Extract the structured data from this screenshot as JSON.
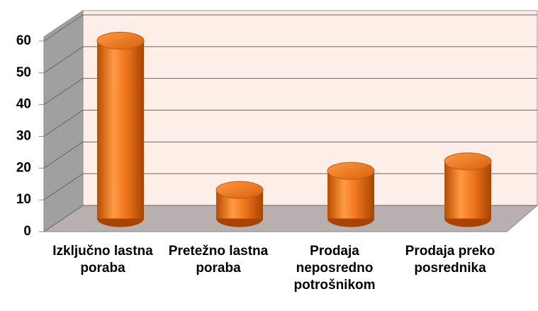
{
  "chart_data": {
    "type": "bar",
    "categories": [
      "Izključno lastna poraba",
      "Pretežno lastna poraba",
      "Prodaja neposredno potrošnikom",
      "Prodaja preko posrednika"
    ],
    "values": [
      56,
      9,
      15,
      18
    ],
    "color": "#f07820",
    "ylim": [
      0,
      60
    ],
    "yticks": [
      0,
      10,
      20,
      30,
      40,
      50,
      60
    ],
    "grid": true
  }
}
